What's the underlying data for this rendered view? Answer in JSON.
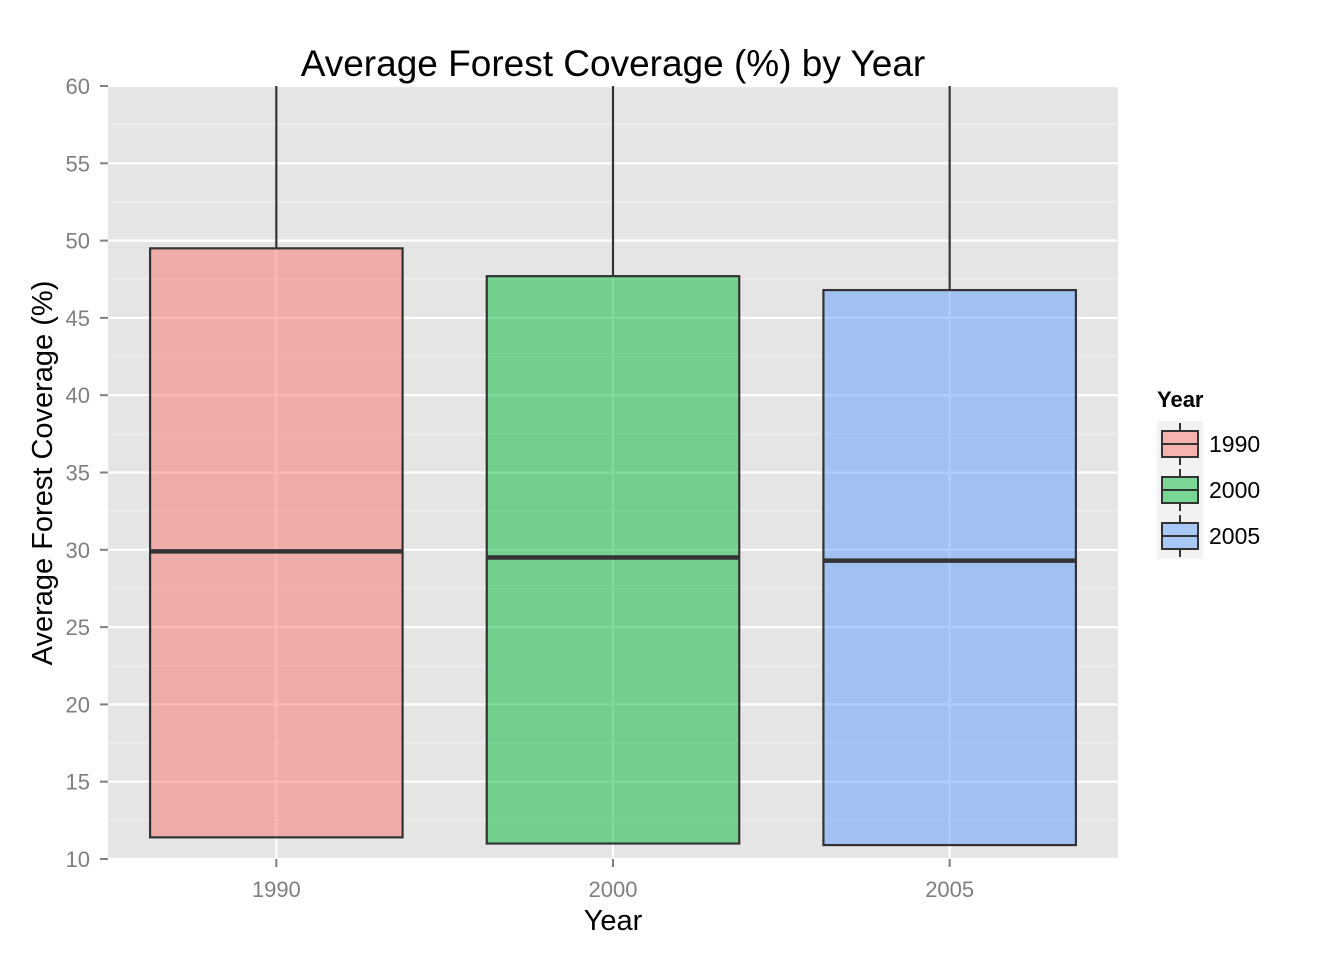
{
  "chart_data": {
    "type": "boxplot",
    "title": "Average Forest Coverage (%) by Year",
    "xlabel": "Year",
    "ylabel": "Average Forest Coverage (%)",
    "ylim": [
      10,
      60
    ],
    "y_ticks": [
      10,
      15,
      20,
      25,
      30,
      35,
      40,
      45,
      50,
      55,
      60
    ],
    "y_tick_labels": [
      "10",
      "15",
      "20",
      "25",
      "30",
      "35",
      "40",
      "45",
      "50",
      "55",
      "60"
    ],
    "categories": [
      "1990",
      "2000",
      "2005"
    ],
    "series": [
      {
        "name": "1990",
        "color": "#f8766d",
        "lower_whisker": 11.4,
        "q1": 11.4,
        "median": 29.9,
        "q3": 49.5,
        "upper_whisker": 60
      },
      {
        "name": "2000",
        "color": "#00ba38",
        "lower_whisker": 11.0,
        "q1": 11.0,
        "median": 29.5,
        "q3": 47.7,
        "upper_whisker": 60
      },
      {
        "name": "2005",
        "color": "#619cff",
        "lower_whisker": 10.9,
        "q1": 10.9,
        "median": 29.3,
        "q3": 46.8,
        "upper_whisker": 60
      }
    ],
    "legend": {
      "title": "Year",
      "position": "right",
      "entries": [
        "1990",
        "2000",
        "2005"
      ]
    },
    "panel_background": "#e5e5e5",
    "grid": true
  }
}
